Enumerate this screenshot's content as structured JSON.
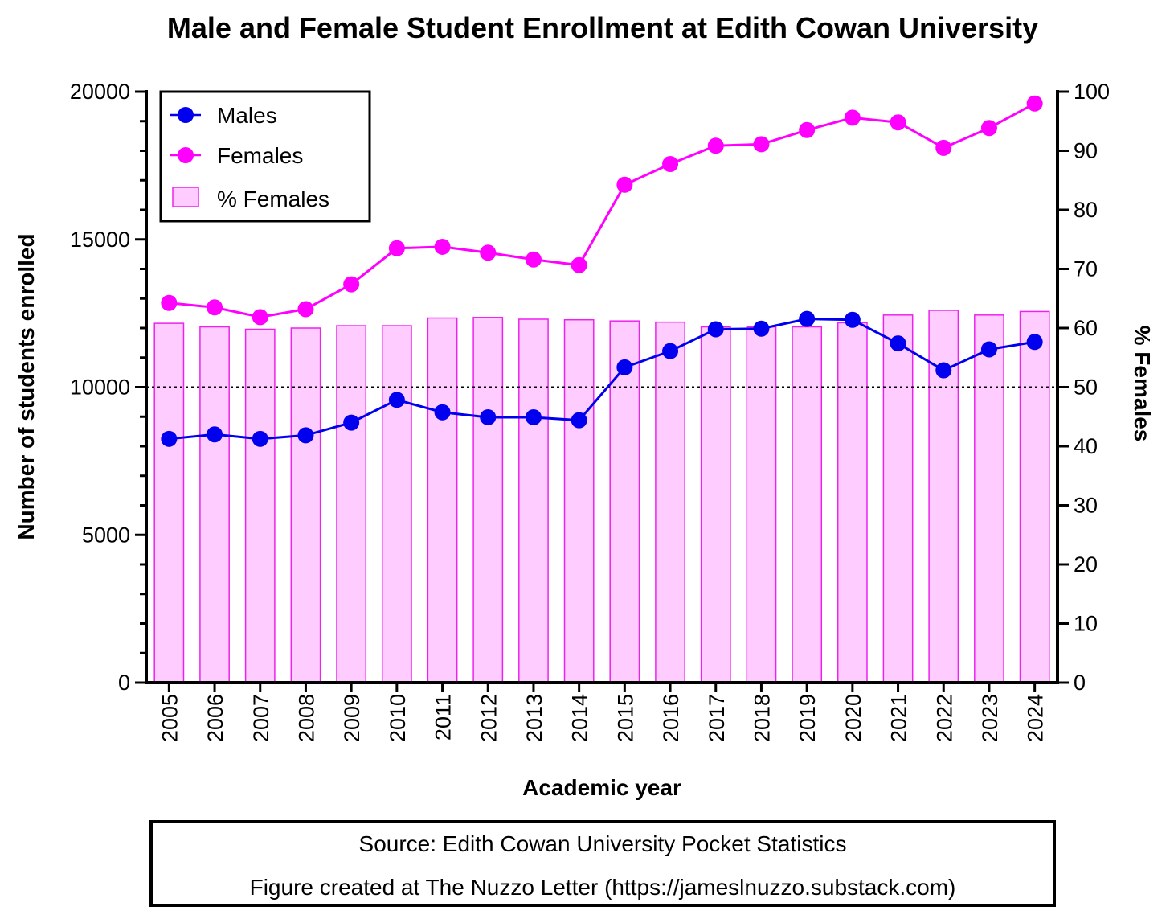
{
  "chart_data": {
    "type": "bar+line",
    "title": "Male and Female Student Enrollment at Edith Cowan University",
    "xlabel": "Academic year",
    "ylabel": "Number of students enrolled",
    "y2label": "% Females",
    "categories": [
      "2005",
      "2006",
      "2007",
      "2008",
      "2009",
      "2010",
      "2011",
      "2012",
      "2013",
      "2014",
      "2015",
      "2016",
      "2017",
      "2018",
      "2019",
      "2020",
      "2021",
      "2022",
      "2023",
      "2024"
    ],
    "ylim": [
      0,
      20000
    ],
    "y2lim": [
      0,
      100
    ],
    "yticks": [
      "0",
      "5000",
      "10000",
      "15000",
      "20000"
    ],
    "y2ticks": [
      "0",
      "10",
      "20",
      "30",
      "40",
      "50",
      "60",
      "70",
      "80",
      "90",
      "100"
    ],
    "reference_line": {
      "axis": "y2",
      "value": 50,
      "style": "dotted"
    },
    "series": [
      {
        "name": "Males",
        "type": "line",
        "axis": "y",
        "color": "#0000ee",
        "values": [
          8250,
          8400,
          8250,
          8370,
          8800,
          9570,
          9150,
          8980,
          8980,
          8880,
          10670,
          11220,
          11960,
          11980,
          12310,
          12280,
          11480,
          10570,
          11280,
          11530
        ]
      },
      {
        "name": "Females",
        "type": "line",
        "axis": "y",
        "color": "#ff00ff",
        "values": [
          12850,
          12700,
          12370,
          12640,
          13480,
          14700,
          14750,
          14550,
          14320,
          14130,
          16850,
          17550,
          18170,
          18220,
          18700,
          19120,
          18960,
          18100,
          18770,
          19600
        ]
      },
      {
        "name": "% Females",
        "type": "bar",
        "axis": "y2",
        "color": "#ffccff",
        "edge_color": "#ee22ee",
        "values": [
          60.8,
          60.2,
          59.8,
          60.0,
          60.4,
          60.4,
          61.7,
          61.8,
          61.5,
          61.4,
          61.2,
          61.0,
          60.2,
          60.2,
          60.2,
          60.9,
          62.2,
          63.0,
          62.2,
          62.8
        ]
      }
    ],
    "legend": [
      "Males",
      "Females",
      "% Females"
    ],
    "legend_position": "top-left"
  },
  "source": {
    "line1": "Source: Edith Cowan University Pocket Statistics",
    "line2": "Figure created at The Nuzzo Letter (https://jameslnuzzo.substack.com)"
  }
}
